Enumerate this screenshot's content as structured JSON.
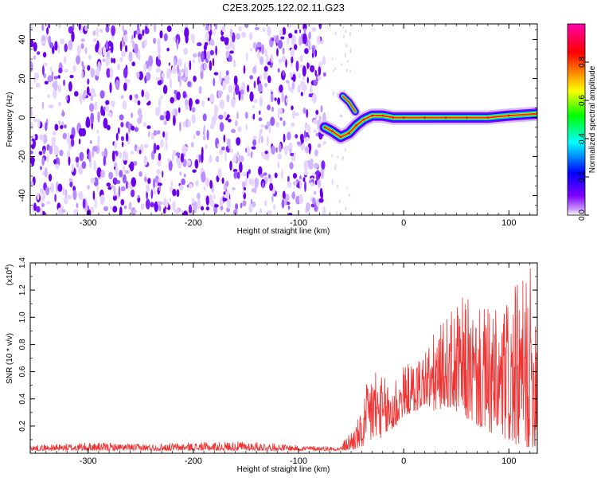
{
  "figure_title": "C2E3.2025.122.02.11.G23",
  "chart_data": [
    {
      "type": "heatmap",
      "xlabel": "Height of straight line (km)",
      "ylabel": "Frequency (Hz)",
      "xlim": [
        -355,
        127
      ],
      "ylim": [
        -50,
        48
      ],
      "xticks": [
        -300,
        -200,
        -100,
        0,
        100
      ],
      "yticks": [
        -40,
        -20,
        0,
        20,
        40
      ],
      "colorbar": {
        "label": "Normalized spectral amplitude",
        "range": [
          0.0,
          1.0
        ],
        "ticks": [
          "0.0",
          "0.2",
          "0.4",
          "0.6",
          "0.8"
        ],
        "tick_values": [
          0.0,
          0.2,
          0.4,
          0.6,
          0.8
        ],
        "colors": [
          "#ffffff",
          "#cc99ff",
          "#7f00ff",
          "#0000ff",
          "#00ffff",
          "#00ff00",
          "#ffff00",
          "#ff8000",
          "#ff0000",
          "#ff00aa"
        ]
      },
      "noise_region_x": [
        -355,
        -75
      ],
      "ridge": [
        {
          "x": -75,
          "y": -5
        },
        {
          "x": -68,
          "y": -7
        },
        {
          "x": -60,
          "y": -10
        },
        {
          "x": -52,
          "y": -8
        },
        {
          "x": -45,
          "y": -4
        },
        {
          "x": -38,
          "y": -1
        },
        {
          "x": -30,
          "y": 1
        },
        {
          "x": -20,
          "y": 1
        },
        {
          "x": -10,
          "y": 0
        },
        {
          "x": 0,
          "y": 0
        },
        {
          "x": 20,
          "y": 0
        },
        {
          "x": 40,
          "y": 0
        },
        {
          "x": 60,
          "y": 0
        },
        {
          "x": 80,
          "y": 0
        },
        {
          "x": 100,
          "y": 1
        },
        {
          "x": 127,
          "y": 2
        }
      ],
      "branch": [
        {
          "x": -58,
          "y": 11
        },
        {
          "x": -52,
          "y": 8
        },
        {
          "x": -46,
          "y": 3
        }
      ]
    },
    {
      "type": "line",
      "xlabel": "Height of straight line (km)",
      "ylabel": "SNR (10 * v/v)",
      "y_multiplier": "(x10",
      "y_multiplier_exp": "4",
      "y_multiplier_close": ")",
      "xlim": [
        -355,
        127
      ],
      "ylim": [
        0.0,
        1.4
      ],
      "xticks": [
        -300,
        -200,
        -100,
        0,
        100
      ],
      "yticks": [
        0.2,
        0.4,
        0.6,
        0.8,
        1.0,
        1.2,
        1.4
      ],
      "ytick_labels": [
        "0.2",
        "0.4",
        "0.6",
        "0.8",
        "1.0",
        "1.2",
        "1.4"
      ],
      "series": [
        {
          "color": "#ee3333",
          "envelope": [
            {
              "x": -355,
              "lo": 0.02,
              "hi": 0.06
            },
            {
              "x": -300,
              "lo": 0.02,
              "hi": 0.08
            },
            {
              "x": -250,
              "lo": 0.02,
              "hi": 0.07
            },
            {
              "x": -200,
              "lo": 0.02,
              "hi": 0.08
            },
            {
              "x": -150,
              "lo": 0.02,
              "hi": 0.09
            },
            {
              "x": -100,
              "lo": 0.02,
              "hi": 0.06
            },
            {
              "x": -60,
              "lo": 0.02,
              "hi": 0.05
            },
            {
              "x": -50,
              "lo": 0.02,
              "hi": 0.18
            },
            {
              "x": -40,
              "lo": 0.04,
              "hi": 0.3
            },
            {
              "x": -30,
              "lo": 0.08,
              "hi": 0.75
            },
            {
              "x": -20,
              "lo": 0.12,
              "hi": 0.55
            },
            {
              "x": -10,
              "lo": 0.15,
              "hi": 0.6
            },
            {
              "x": 0,
              "lo": 0.28,
              "hi": 0.65
            },
            {
              "x": 10,
              "lo": 0.3,
              "hi": 0.68
            },
            {
              "x": 20,
              "lo": 0.35,
              "hi": 0.8
            },
            {
              "x": 30,
              "lo": 0.3,
              "hi": 0.9
            },
            {
              "x": 40,
              "lo": 0.35,
              "hi": 1.0
            },
            {
              "x": 50,
              "lo": 0.3,
              "hi": 1.1
            },
            {
              "x": 60,
              "lo": 0.25,
              "hi": 1.18
            },
            {
              "x": 70,
              "lo": 0.2,
              "hi": 1.05
            },
            {
              "x": 80,
              "lo": 0.15,
              "hi": 1.1
            },
            {
              "x": 90,
              "lo": 0.12,
              "hi": 1.05
            },
            {
              "x": 100,
              "lo": 0.08,
              "hi": 1.2
            },
            {
              "x": 110,
              "lo": 0.05,
              "hi": 1.25
            },
            {
              "x": 118,
              "lo": 0.04,
              "hi": 1.4
            },
            {
              "x": 127,
              "lo": 0.05,
              "hi": 1.3
            }
          ]
        }
      ]
    }
  ]
}
